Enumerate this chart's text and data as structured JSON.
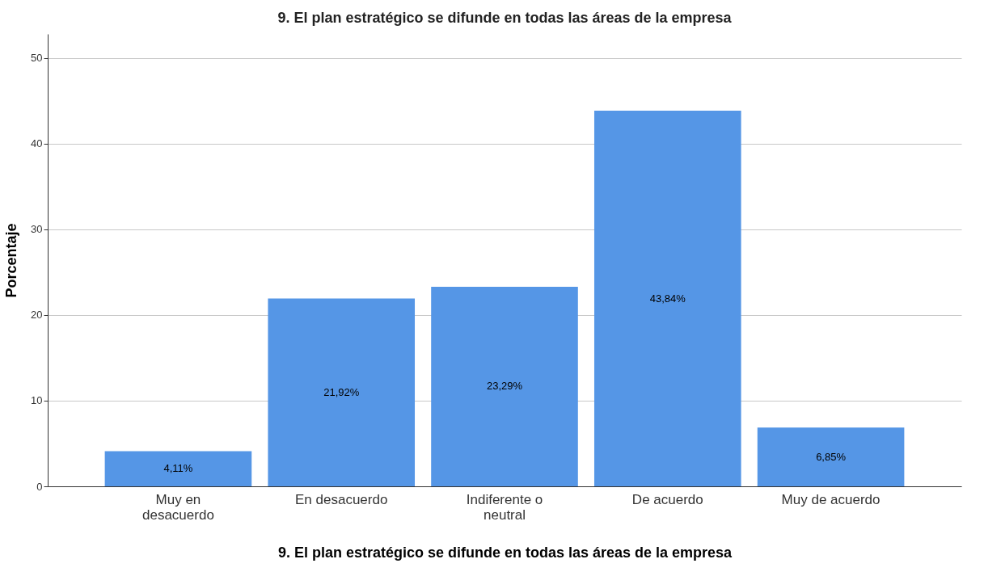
{
  "chart_data": {
    "type": "bar",
    "title": "9. El plan estratégico se difunde en todas las áreas de la empresa",
    "xlabel": "9. El plan estratégico se difunde en todas las áreas de la empresa",
    "ylabel": "Porcentaje",
    "categories": [
      "Muy en desacuerdo",
      "En desacuerdo",
      "Indiferente o neutral",
      "De acuerdo",
      "Muy de acuerdo"
    ],
    "values": [
      4.11,
      21.92,
      23.29,
      43.84,
      6.85
    ],
    "value_labels": [
      "4,11%",
      "21,92%",
      "23,29%",
      "43,84%",
      "6,85%"
    ],
    "color": "#5596e6",
    "ylim": [
      0,
      52.8
    ],
    "yticks": [
      0,
      10,
      20,
      30,
      40,
      50
    ],
    "grid": "y"
  }
}
